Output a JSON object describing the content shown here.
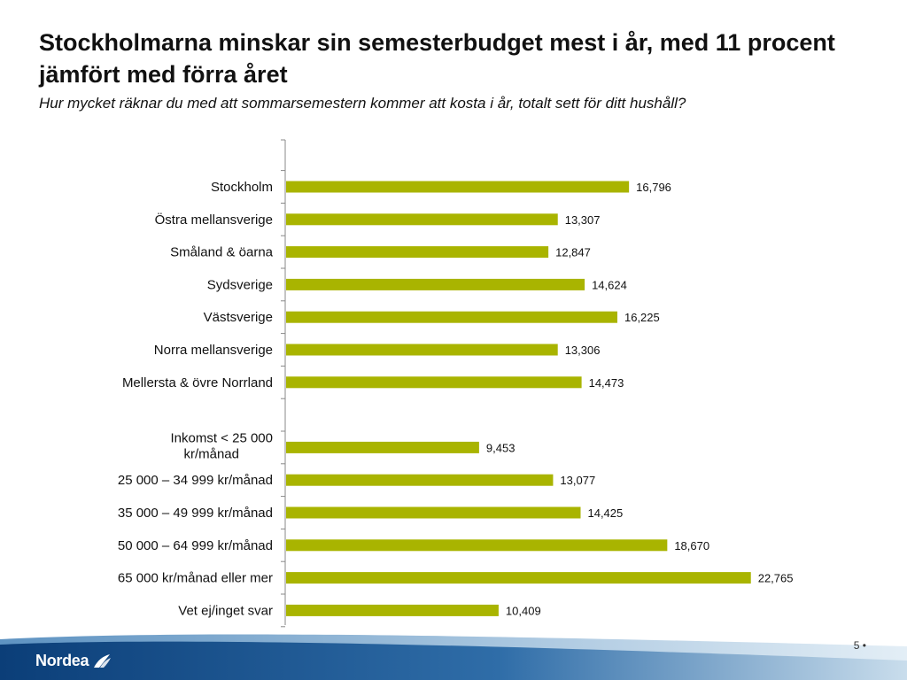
{
  "header": {
    "title": "Stockholmarna minskar sin semesterbudget mest i år, med 11 procent jämfört med förra året",
    "subtitle": "Hur mycket räknar du med att sommarsemestern kommer att kosta i år, totalt sett för ditt hushåll?"
  },
  "chart_data": {
    "type": "bar",
    "orientation": "horizontal",
    "title": "",
    "xlabel": "",
    "ylabel": "",
    "xlim": [
      0,
      25000
    ],
    "grid": false,
    "bar_color": "#A9B400",
    "categories": [
      "Stockholm",
      "Östra mellansverige",
      "Småland & öarna",
      "Sydsverige",
      "Västsverige",
      "Norra mellansverige",
      "Mellersta & övre Norrland",
      "",
      "Inkomst < 25 000 kr/månad",
      "25 000 – 34 999 kr/månad",
      "35 000 – 49 999 kr/månad",
      "50 000 – 64 999 kr/månad",
      "65 000 kr/månad eller mer",
      "Vet ej/inget svar"
    ],
    "values": [
      16796,
      13307,
      12847,
      14624,
      16225,
      13306,
      14473,
      null,
      9453,
      13077,
      14425,
      18670,
      22765,
      10409
    ],
    "value_labels": [
      "16,796",
      "13,307",
      "12,847",
      "14,624",
      "16,225",
      "13,306",
      "14,473",
      "",
      "9,453",
      "13,077",
      "14,425",
      "18,670",
      "22,765",
      "10,409"
    ]
  },
  "footer": {
    "logo_text": "Nordea",
    "page_number": "5 •",
    "colors": {
      "band_dark": "#0B3E78",
      "band_light": "#9DBFD8"
    }
  }
}
